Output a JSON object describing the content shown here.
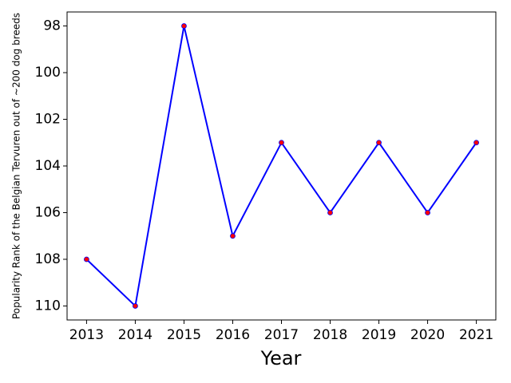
{
  "chart_data": {
    "type": "line",
    "x": [
      2013,
      2014,
      2015,
      2016,
      2017,
      2018,
      2019,
      2020,
      2021
    ],
    "series": [
      {
        "color": "#0000ff",
        "marker_color": "#ff0000",
        "values": [
          108,
          110,
          98,
          107,
          103,
          106,
          103,
          106,
          103
        ]
      }
    ],
    "xlabel": "Year",
    "ylabel": "Popularity Rank of the Belgian Tervuren out of ~200 dog breeds",
    "xlim": [
      2012.6,
      2021.4
    ],
    "xticks": [
      2013,
      2014,
      2015,
      2016,
      2017,
      2018,
      2019,
      2020,
      2021
    ],
    "ylim": [
      110.6,
      97.4
    ],
    "yticks": [
      98,
      100,
      102,
      104,
      106,
      108,
      110
    ]
  }
}
